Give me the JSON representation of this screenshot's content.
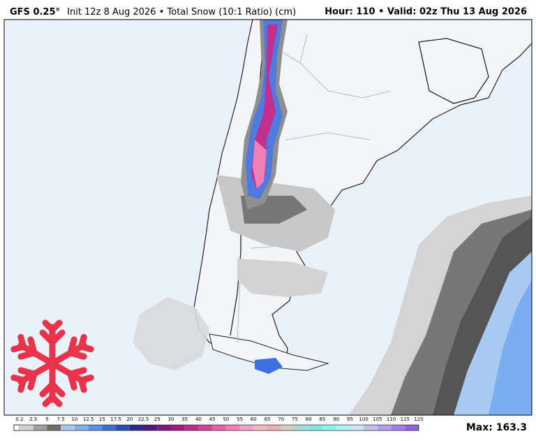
{
  "header": {
    "model": "GFS 0.25°",
    "info": "Init 12z 8 Aug 2026 • Total Snow (10:1 Ratio) (cm)",
    "valid": "Hour: 110 • Valid: 02z Thu 13 Aug 2026"
  },
  "colorbar": {
    "labels": [
      "0.2",
      "2.5",
      "5",
      "7.5",
      "10",
      "12.5",
      "15",
      "17.5",
      "20",
      "22.5",
      "25",
      "30",
      "35",
      "40",
      "45",
      "50",
      "55",
      "60",
      "65",
      "70",
      "75",
      "80",
      "85",
      "90",
      "95",
      "100",
      "105",
      "110",
      "115",
      "120"
    ]
  },
  "max": "Max: 163.3"
}
